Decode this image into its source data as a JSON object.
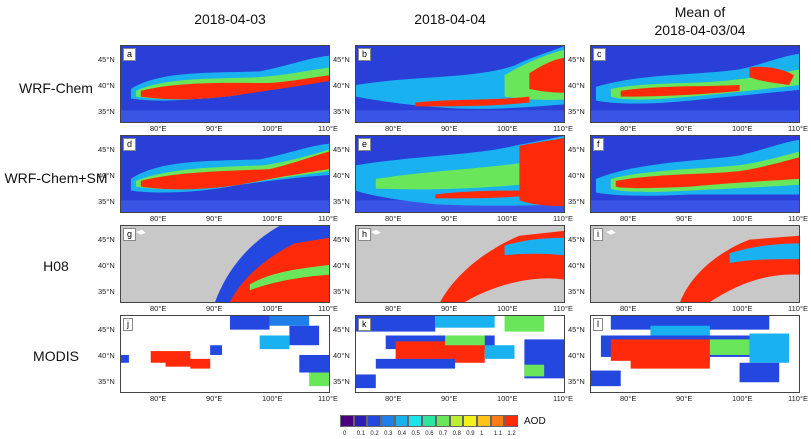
{
  "columns": [
    "2018-04-03",
    "2018-04-04",
    "Mean of\n2018-04-03/04"
  ],
  "col_titles": {
    "c1": "2018-04-03",
    "c2": "2018-04-04",
    "c3_line1": "Mean of",
    "c3_line2": "2018-04-03/04"
  },
  "rows": [
    "WRF-Chem",
    "WRF-Chem+SM",
    "H08",
    "MODIS"
  ],
  "panels": [
    [
      "a",
      "b",
      "c"
    ],
    [
      "d",
      "e",
      "f"
    ],
    [
      "g",
      "h",
      "i"
    ],
    [
      "j",
      "k",
      "l"
    ]
  ],
  "lat_ticks": [
    "45°N",
    "40°N",
    "35°N"
  ],
  "lon_ticks": [
    "80°E",
    "90°E",
    "100°E",
    "110°E"
  ],
  "colorbar": {
    "label": "AOD",
    "ticks": [
      "0",
      "0.1",
      "0.2",
      "0.3",
      "0.4",
      "0.5",
      "0.6",
      "0.7",
      "0.8",
      "0.9",
      "1",
      "1.1",
      "1.2"
    ],
    "colors": [
      "#4b0082",
      "#2e1fb4",
      "#2447e0",
      "#1f7fe8",
      "#19b1f0",
      "#19e6e6",
      "#2ce6a0",
      "#6ae65a",
      "#b8ef34",
      "#f2f21a",
      "#ffc21a",
      "#ff7d14",
      "#ff2a0a"
    ]
  }
}
